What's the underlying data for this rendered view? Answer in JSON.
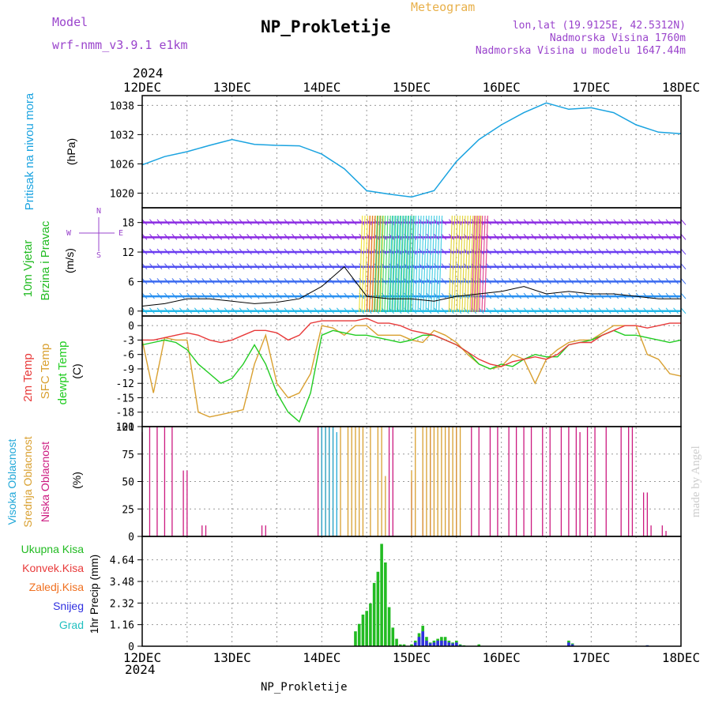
{
  "header": {
    "title": "NP_Prokletije",
    "subtitle": "Meteogram",
    "model_label": "Model",
    "model_name": "wrf-nmm_v3.9.1  e1km",
    "lonlat": "lon,lat (19.9125E, 42.5312N)",
    "altitude": "Nadmorska Visina 1760m",
    "model_altitude": "Nadmorska Visina u modelu 1647.44m",
    "footer_name": "NP_Prokletije",
    "credit": "made by Angel"
  },
  "colors": {
    "title": "#000000",
    "subtitle": "#e8b04a",
    "model": "#9a44cc",
    "pressure": "#1aa3e0",
    "wind_label": "#22bb22",
    "temp2m": "#e83a3a",
    "sfc": "#d9a030",
    "dewpt": "#22cc22",
    "high_cloud": "#22a8d8",
    "mid_cloud": "#d9a030",
    "low_cloud": "#cc1a80",
    "precip_total": "#22bb22",
    "precip_conv": "#e83a3a",
    "precip_frz": "#f07020",
    "snow": "#3030e0",
    "hail": "#22c0c0",
    "grid": "#999999"
  },
  "axis": {
    "year_top": "2024",
    "year_bottom": "2024",
    "days": [
      "12DEC",
      "13DEC",
      "14DEC",
      "15DEC",
      "16DEC",
      "17DEC",
      "18DEC"
    ]
  },
  "panel_labels": {
    "pressure": [
      "Pritisak na nivou mora",
      "(hPa)"
    ],
    "wind": [
      "10m Vjetar",
      "Brzina i Pravac",
      "(m/s)"
    ],
    "wind_compass": [
      "N",
      "W",
      "E",
      "S"
    ],
    "temp": [
      "2m Temp",
      "SFC Temp",
      "dewpt Temp",
      "(C)"
    ],
    "cloud": [
      "Visoka Oblacnost",
      "Srednja Oblacnost",
      "Niska Oblacnost",
      "(%)"
    ],
    "precip": [
      "Ukupna Kisa",
      "Konvek.Kisa",
      "Zaledj.Kisa",
      "Snijeg",
      "Grad",
      "1hr Precip (mm)"
    ]
  },
  "chart_data": [
    {
      "type": "line",
      "panel": "pressure",
      "ylabel": "(hPa)",
      "ylim": [
        1017,
        1040
      ],
      "yticks": [
        1020,
        1026,
        1032,
        1038
      ],
      "x_hours": [
        0,
        6,
        12,
        18,
        24,
        30,
        36,
        42,
        48,
        54,
        60,
        66,
        72,
        78,
        84,
        90,
        96,
        102,
        108,
        114,
        120,
        126,
        132,
        138,
        144
      ],
      "series": [
        {
          "values": [
            1025.8,
            1027.5,
            1028.5,
            1029.8,
            1031.0,
            1030.0,
            1029.8,
            1029.7,
            1028.0,
            1025.0,
            1020.5,
            1019.8,
            1019.2,
            1020.5,
            1026.5,
            1031.0,
            1034.0,
            1036.5,
            1038.5,
            1037.2,
            1037.5,
            1036.5,
            1034.0,
            1032.5,
            1032.2
          ]
        }
      ]
    },
    {
      "type": "line",
      "panel": "wind",
      "ylabel": "(m/s)",
      "ylim": [
        -1,
        21
      ],
      "yticks": [
        0,
        6,
        12,
        18
      ],
      "x_hours": [
        0,
        6,
        12,
        18,
        24,
        30,
        36,
        42,
        48,
        54,
        60,
        66,
        72,
        78,
        84,
        90,
        96,
        102,
        108,
        114,
        120,
        126,
        132,
        138,
        144
      ],
      "series": [
        {
          "values": [
            1.0,
            1.5,
            2.5,
            2.5,
            2.0,
            1.5,
            1.8,
            2.5,
            5.0,
            9.0,
            3.0,
            2.5,
            2.5,
            2.0,
            3.0,
            3.5,
            4.0,
            5.0,
            3.5,
            4.0,
            3.5,
            3.5,
            3.0,
            2.5,
            2.5
          ]
        }
      ]
    },
    {
      "type": "line",
      "panel": "temperature",
      "ylabel": "(C)",
      "ylim": [
        -21,
        2
      ],
      "yticks": [
        0,
        -3,
        -6,
        -9,
        -12,
        -15,
        -18,
        -21
      ],
      "x_hours": [
        0,
        3,
        6,
        9,
        12,
        15,
        18,
        21,
        24,
        27,
        30,
        33,
        36,
        39,
        42,
        45,
        48,
        51,
        54,
        57,
        60,
        63,
        66,
        69,
        72,
        75,
        78,
        81,
        84,
        87,
        90,
        93,
        96,
        99,
        102,
        105,
        108,
        111,
        114,
        117,
        120,
        123,
        126,
        129,
        132,
        135,
        138,
        141,
        144
      ],
      "series": [
        {
          "name": "2m Temp",
          "values": [
            -3,
            -3,
            -2.5,
            -2,
            -1.5,
            -2,
            -3,
            -3.5,
            -3,
            -2,
            -1,
            -1,
            -1.5,
            -3,
            -2,
            0.5,
            1,
            1,
            1,
            1,
            1.5,
            0.5,
            0.5,
            0,
            -1,
            -1.5,
            -2,
            -3,
            -4,
            -5.5,
            -7,
            -8,
            -8.5,
            -7.5,
            -7,
            -6.5,
            -7,
            -6,
            -4,
            -3.5,
            -3.5,
            -2,
            -1,
            0,
            0,
            -0.5,
            0,
            0.5,
            0.5
          ]
        },
        {
          "name": "SFC Temp",
          "values": [
            -3,
            -14,
            -2.5,
            -3,
            -3,
            -18,
            -19,
            -18.5,
            -18,
            -17.5,
            -8,
            -2,
            -12,
            -15,
            -14,
            -10,
            0,
            -0.5,
            -2,
            0,
            0,
            -2,
            -2,
            -2,
            -3,
            -3.5,
            -1,
            -2,
            -3.5,
            -6,
            -8,
            -9,
            -8.5,
            -6,
            -7,
            -12,
            -7,
            -5,
            -3.5,
            -3,
            -3,
            -1.5,
            0,
            0,
            0,
            -6,
            -7,
            -10,
            -10.5
          ]
        },
        {
          "name": "dewpt Temp",
          "values": [
            -4,
            -3.5,
            -3,
            -3.5,
            -5,
            -8,
            -10,
            -12,
            -11,
            -8,
            -4,
            -8,
            -14,
            -18,
            -20,
            -14,
            -2,
            -1,
            -1.5,
            -2,
            -2,
            -2.5,
            -3,
            -3.5,
            -3,
            -2,
            -2,
            -3,
            -4,
            -5.5,
            -8,
            -9,
            -8,
            -8.5,
            -7,
            -6,
            -6.5,
            -6.5,
            -4,
            -3.5,
            -3,
            -2,
            -1,
            -2,
            -2,
            -2.5,
            -3,
            -3.5,
            -3
          ]
        }
      ]
    },
    {
      "type": "bar",
      "panel": "cloud",
      "ylabel": "(%)",
      "ylim": [
        0,
        100
      ],
      "yticks": [
        0,
        25,
        50,
        75,
        100
      ],
      "series": [
        {
          "name": "Niska Oblacnost",
          "x_hours": [
            0,
            2,
            4,
            6,
            8,
            11,
            12,
            16,
            17,
            32,
            33,
            47,
            48,
            50,
            66,
            67,
            72,
            75,
            77,
            82,
            84,
            88,
            90,
            93,
            95,
            98,
            100,
            102,
            104,
            107,
            109,
            112,
            114,
            116,
            117,
            119,
            121,
            124,
            128,
            130,
            131,
            134,
            135,
            136,
            139,
            140
          ],
          "values": [
            95,
            100,
            100,
            100,
            100,
            60,
            60,
            10,
            10,
            10,
            10,
            100,
            100,
            100,
            100,
            100,
            50,
            50,
            100,
            100,
            100,
            100,
            100,
            100,
            100,
            100,
            100,
            100,
            100,
            100,
            100,
            100,
            100,
            100,
            95,
            100,
            100,
            100,
            100,
            100,
            100,
            40,
            40,
            10,
            10,
            5
          ]
        },
        {
          "name": "Srednja Oblacnost",
          "x_hours": [
            48,
            49,
            50,
            51,
            53,
            55,
            56,
            57,
            58,
            59,
            61,
            63,
            64,
            65,
            72,
            73,
            75,
            76,
            77,
            78,
            79,
            80,
            81,
            82,
            83,
            84,
            85
          ],
          "values": [
            100,
            100,
            100,
            100,
            100,
            100,
            100,
            100,
            100,
            100,
            100,
            100,
            100,
            55,
            60,
            100,
            100,
            100,
            100,
            100,
            100,
            100,
            100,
            100,
            100,
            100,
            100
          ]
        },
        {
          "name": "Visoka Oblacnost",
          "x_hours": [
            48,
            49,
            50,
            51,
            52
          ],
          "values": [
            100,
            100,
            100,
            100,
            95
          ]
        }
      ]
    },
    {
      "type": "bar",
      "panel": "precip",
      "ylabel": "1hr Precip (mm)",
      "ylim": [
        0,
        5.9
      ],
      "yticks": [
        0,
        1.16,
        2.32,
        3.48,
        4.64
      ],
      "series": [
        {
          "name": "Ukupna Kisa",
          "x_hours": [
            57,
            58,
            59,
            60,
            61,
            62,
            63,
            64,
            65,
            66,
            67,
            68,
            69,
            70,
            72,
            73,
            74,
            75,
            76,
            77,
            78,
            79,
            80,
            81,
            82,
            83,
            84,
            85,
            86,
            90,
            114,
            115,
            135
          ],
          "values": [
            0.8,
            1.2,
            1.7,
            1.9,
            2.3,
            3.4,
            4.0,
            5.5,
            4.5,
            2.1,
            1.0,
            0.4,
            0.1,
            0.1,
            0.1,
            0.3,
            0.7,
            1.1,
            0.5,
            0.2,
            0.3,
            0.4,
            0.5,
            0.5,
            0.3,
            0.2,
            0.3,
            0.1,
            0.05,
            0.1,
            0.3,
            0.15,
            0.05
          ]
        },
        {
          "name": "Snijeg",
          "x_hours": [
            73,
            74,
            75,
            76,
            77,
            78,
            79,
            80,
            81,
            82,
            83,
            84,
            85,
            114,
            115,
            135
          ],
          "values": [
            0.2,
            0.5,
            0.8,
            0.3,
            0.15,
            0.2,
            0.3,
            0.3,
            0.3,
            0.2,
            0.15,
            0.2,
            0.05,
            0.2,
            0.1,
            0.05
          ]
        }
      ]
    }
  ]
}
